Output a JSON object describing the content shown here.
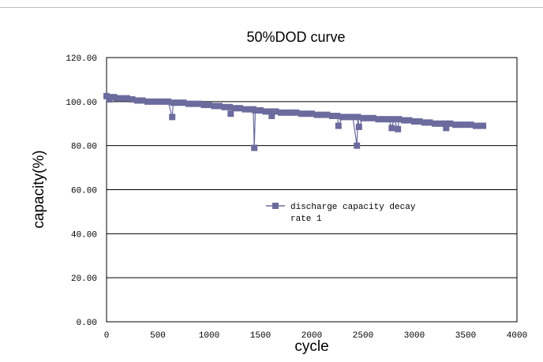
{
  "chart_data": {
    "type": "scatter",
    "title": "50%DOD curve",
    "xlabel": "cycle",
    "ylabel": "capacity(%)",
    "xlim": [
      0,
      4000
    ],
    "ylim": [
      0,
      120
    ],
    "x_ticks": [
      0,
      500,
      1000,
      1500,
      2000,
      2500,
      3000,
      3500,
      4000
    ],
    "y_ticks": [
      "0.00",
      "20.00",
      "40.00",
      "60.00",
      "80.00",
      "100.00",
      "120.00"
    ],
    "grid": "horizontal",
    "legend_position": "center-right",
    "series": [
      {
        "name": "discharge capacity decay\nrate 1",
        "color": "#6b6b9e",
        "x": [
          0,
          25,
          50,
          75,
          100,
          150,
          200,
          250,
          300,
          350,
          400,
          450,
          500,
          550,
          600,
          640,
          650,
          700,
          750,
          800,
          850,
          900,
          950,
          1000,
          1050,
          1100,
          1150,
          1200,
          1210,
          1250,
          1300,
          1350,
          1400,
          1430,
          1440,
          1450,
          1500,
          1550,
          1600,
          1610,
          1650,
          1700,
          1750,
          1800,
          1850,
          1900,
          1950,
          2000,
          2050,
          2100,
          2150,
          2200,
          2250,
          2260,
          2300,
          2350,
          2400,
          2440,
          2450,
          2460,
          2500,
          2550,
          2600,
          2650,
          2700,
          2750,
          2780,
          2800,
          2840,
          2850,
          2900,
          2950,
          3000,
          3050,
          3100,
          3150,
          3200,
          3250,
          3300,
          3310,
          3350,
          3400,
          3450,
          3500,
          3550,
          3600,
          3650,
          3670
        ],
        "y": [
          102.5,
          101,
          102,
          102,
          101.5,
          101.5,
          101.5,
          101,
          100.5,
          100.5,
          100,
          100,
          100,
          100,
          100,
          93,
          99.5,
          99.5,
          99.5,
          99,
          99,
          99,
          98.5,
          98.5,
          98,
          98,
          97.5,
          97.5,
          94.5,
          97,
          97,
          96.5,
          96.5,
          96.5,
          79,
          96,
          96,
          95.5,
          95.5,
          93.5,
          95.5,
          95,
          95,
          95,
          95,
          94.5,
          94.5,
          94.5,
          94,
          94,
          94,
          93.5,
          93.5,
          89,
          93,
          93,
          93,
          80,
          93,
          88.5,
          92.5,
          92.5,
          92.5,
          92,
          92,
          92,
          88,
          92,
          87.5,
          92,
          91.5,
          91.5,
          91,
          91,
          90.5,
          90.5,
          90,
          90,
          90,
          88,
          90,
          89.5,
          89.5,
          89.5,
          89.5,
          89,
          89,
          89
        ]
      }
    ]
  }
}
